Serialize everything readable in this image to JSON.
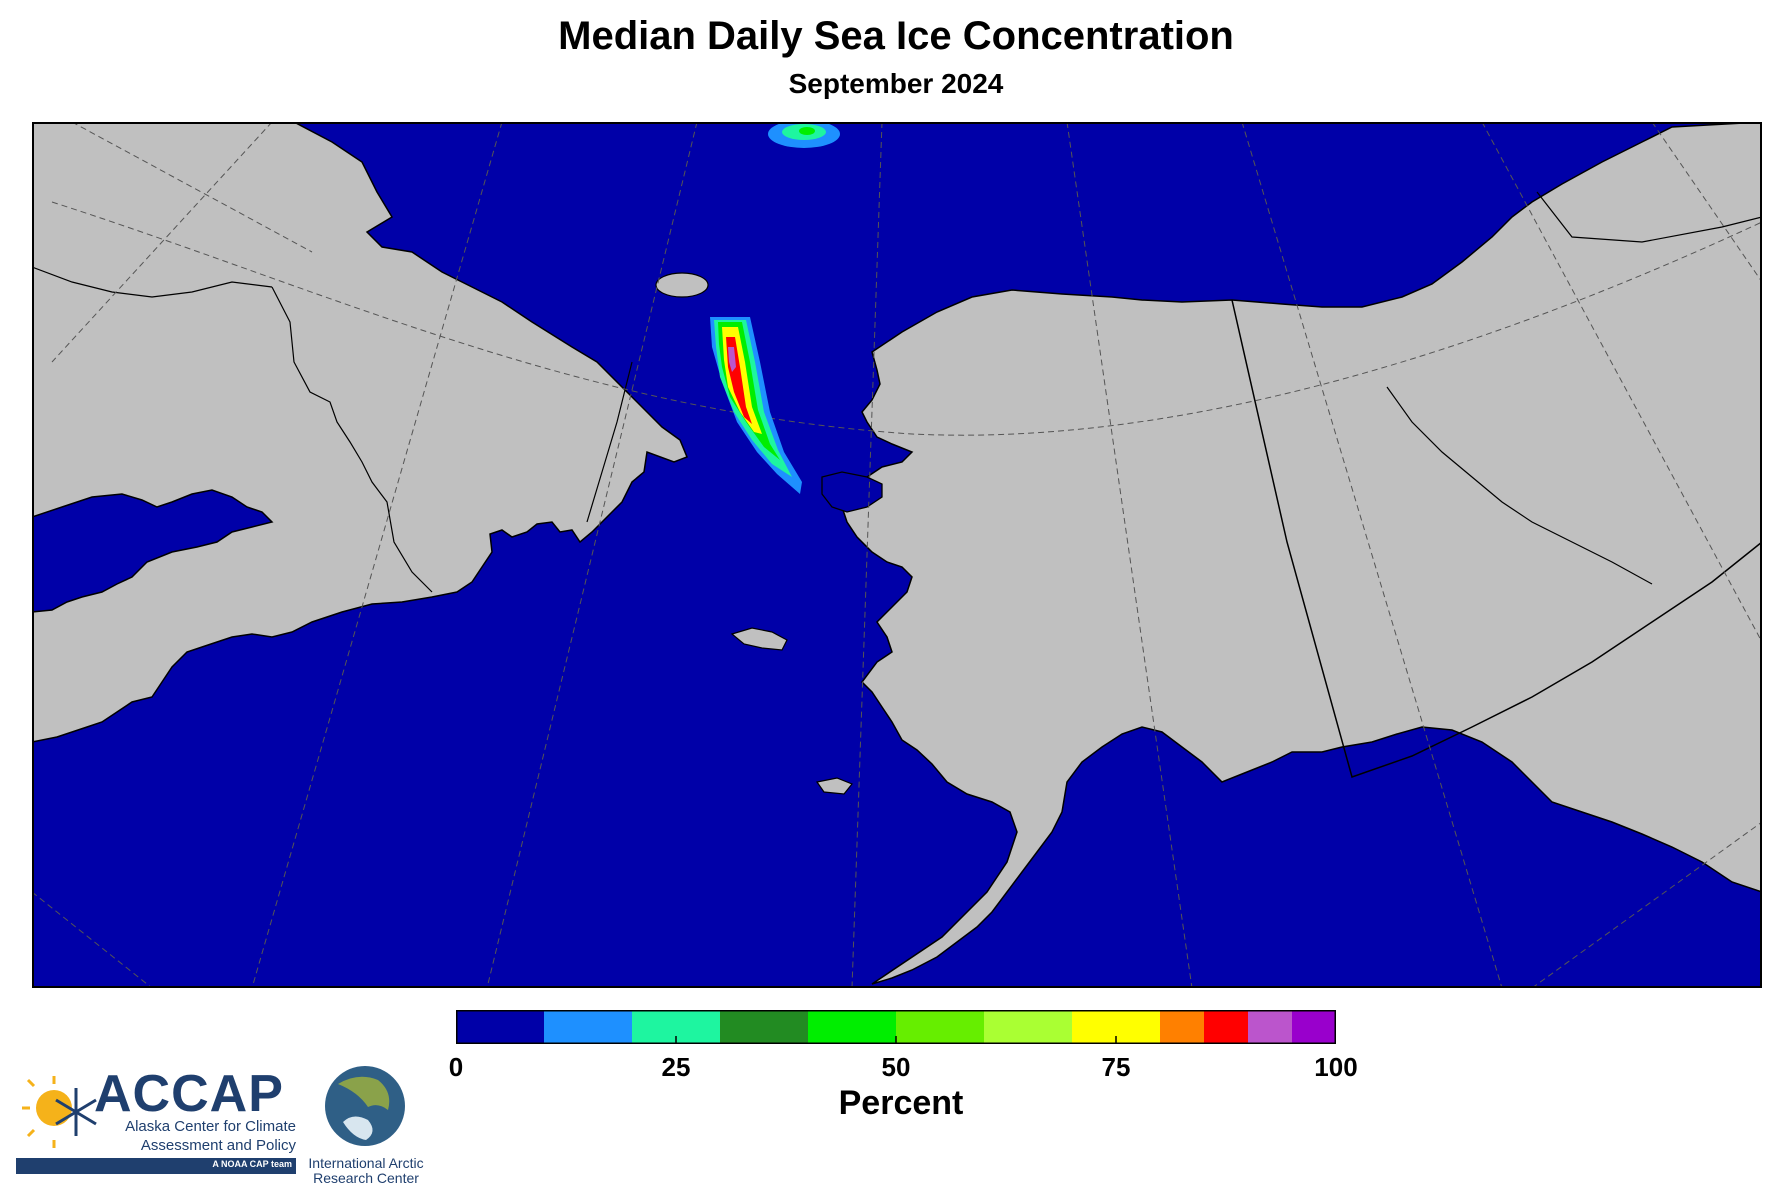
{
  "title": "Median Daily Sea Ice Concentration",
  "subtitle": "September 2024",
  "colors": {
    "ocean": "#0000a8",
    "land": "#c0c0c0",
    "border": "#000000",
    "graticule": "#555555"
  },
  "colorbar": {
    "label": "Percent",
    "ticks": [
      "0",
      "25",
      "50",
      "75",
      "100"
    ],
    "tick_values": [
      0,
      25,
      50,
      75,
      100
    ],
    "classes": [
      {
        "from": 0,
        "to": 10,
        "color": "#0000a8"
      },
      {
        "from": 10,
        "to": 20,
        "color": "#1e90ff"
      },
      {
        "from": 20,
        "to": 30,
        "color": "#1ef5a0"
      },
      {
        "from": 30,
        "to": 40,
        "color": "#228b22"
      },
      {
        "from": 40,
        "to": 50,
        "color": "#00ee00"
      },
      {
        "from": 50,
        "to": 60,
        "color": "#66ee00"
      },
      {
        "from": 60,
        "to": 70,
        "color": "#aaff33"
      },
      {
        "from": 70,
        "to": 80,
        "color": "#ffff00"
      },
      {
        "from": 80,
        "to": 85,
        "color": "#ff8000"
      },
      {
        "from": 85,
        "to": 90,
        "color": "#ff0000"
      },
      {
        "from": 90,
        "to": 95,
        "color": "#bb55cc"
      },
      {
        "from": 95,
        "to": 100,
        "color": "#9900cc"
      }
    ]
  },
  "logos": {
    "accap_name": "ACCAP",
    "accap_line1": "Alaska Center for Climate",
    "accap_line2": "Assessment and Policy",
    "accap_tag": "A NOAA CAP team",
    "iarc_line1": "International Arctic",
    "iarc_line2": "Research Center"
  }
}
